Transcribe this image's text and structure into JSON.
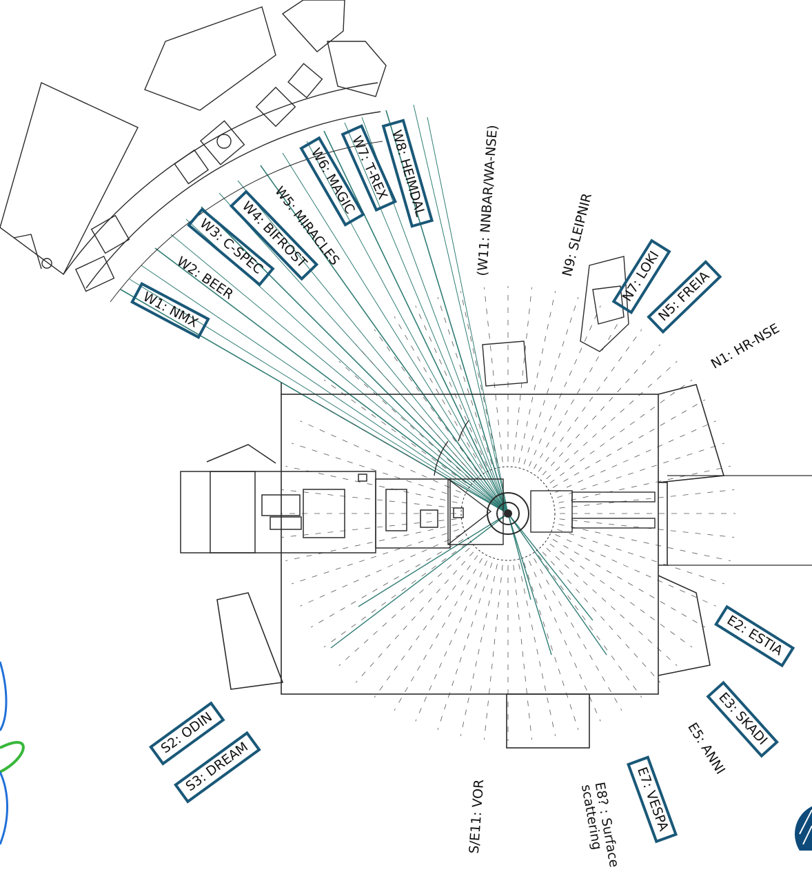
{
  "colors": {
    "box": "#1a5878",
    "line": "#2f7d74",
    "wall": "#2a2a2a",
    "logo_blue": "#1f6fd8",
    "logo_green": "#38b73a"
  },
  "labels": [
    {
      "id": "w1",
      "text": "W1: NMX",
      "boxed": true
    },
    {
      "id": "w2",
      "text": "W2: BEER",
      "boxed": false
    },
    {
      "id": "w3",
      "text": "W3: C-SPEC",
      "boxed": true
    },
    {
      "id": "w4",
      "text": "W4: BIFROST",
      "boxed": true
    },
    {
      "id": "w5",
      "text": "W5: MIRACLES",
      "boxed": false
    },
    {
      "id": "w6",
      "text": "W6: MAGIC",
      "boxed": true
    },
    {
      "id": "w7",
      "text": "W7: T-REX",
      "boxed": true
    },
    {
      "id": "w8",
      "text": "W8: HEIMDAL",
      "boxed": true
    },
    {
      "id": "w11",
      "text": "(W11: NNBAR/WA-NSE)",
      "boxed": false
    },
    {
      "id": "n9",
      "text": "N9: SLEIPNIR",
      "boxed": false
    },
    {
      "id": "n7",
      "text": "N7: LOKI",
      "boxed": true
    },
    {
      "id": "n5",
      "text": "N5: FREIA",
      "boxed": true
    },
    {
      "id": "n1",
      "text": "N1: HR-NSE",
      "boxed": false
    },
    {
      "id": "e2",
      "text": "E2: ESTIA",
      "boxed": true
    },
    {
      "id": "e3",
      "text": "E3: SKADI",
      "boxed": true
    },
    {
      "id": "e5",
      "text": "E5: ANNI",
      "boxed": false
    },
    {
      "id": "e7",
      "text": "E7: VESPA",
      "boxed": true
    },
    {
      "id": "e8",
      "text": "E8? : Surface\nscattering",
      "boxed": false
    },
    {
      "id": "s11",
      "text": "S/E11: VOR",
      "boxed": false
    },
    {
      "id": "s2",
      "text": "S2: ODIN",
      "boxed": true
    },
    {
      "id": "s3",
      "text": "S3: DREAM",
      "boxed": true
    }
  ]
}
